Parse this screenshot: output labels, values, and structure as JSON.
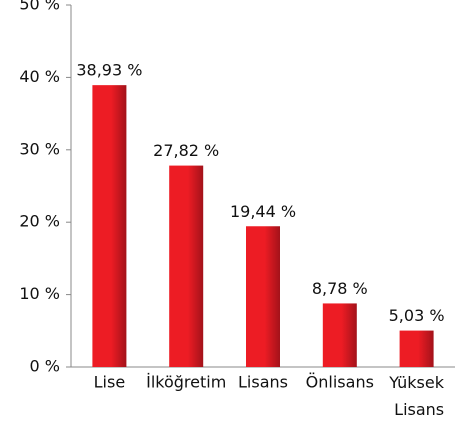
{
  "chart_data": {
    "type": "bar",
    "categories": [
      "Lise",
      "İlköğretim",
      "Lisans",
      "Önlisans",
      "Yüksek Lisans"
    ],
    "values": [
      38.93,
      27.82,
      19.44,
      8.78,
      5.03
    ],
    "value_labels": [
      "38,93 %",
      "27,82 %",
      "19,44 %",
      "8,78 %",
      "5,03 %"
    ],
    "color": "#ed1c24",
    "ylim": [
      0,
      50
    ],
    "yticks": [
      {
        "value": 0,
        "label": "0 %"
      },
      {
        "value": 10,
        "label": "10 %"
      },
      {
        "value": 20,
        "label": "20 %"
      },
      {
        "value": 30,
        "label": "30 %"
      },
      {
        "value": 40,
        "label": "40 %"
      },
      {
        "value": 50,
        "label": "50 %"
      }
    ],
    "grid": false
  }
}
